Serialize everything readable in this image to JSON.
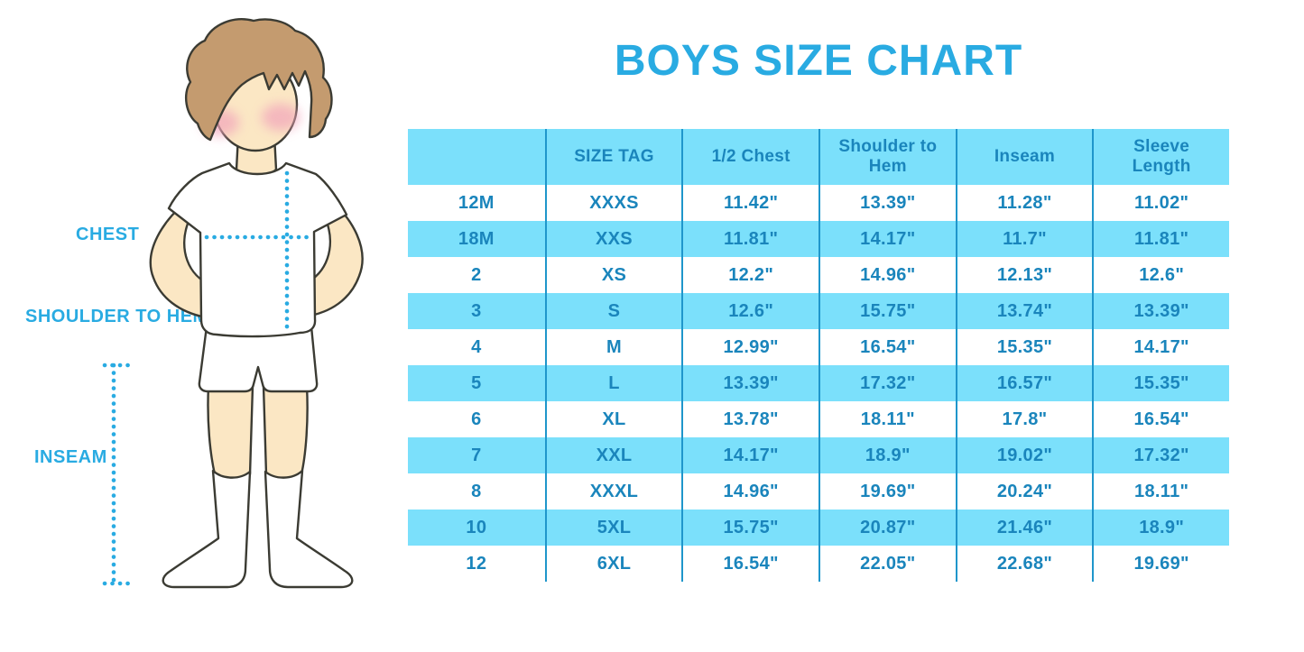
{
  "title": "BOYS SIZE CHART",
  "diagram": {
    "chest_label": "CHEST",
    "shoulder_to_hem_label": "SHOULDER TO HEM",
    "inseam_label": "INSEAM"
  },
  "chart_data": {
    "type": "table",
    "title": "BOYS SIZE CHART",
    "unit": "inches",
    "columns": [
      "",
      "SIZE TAG",
      "1/2 Chest",
      "Shoulder to Hem",
      "Inseam",
      "Sleeve Length"
    ],
    "rows": [
      [
        "12M",
        "XXXS",
        "11.42\"",
        "13.39\"",
        "11.28\"",
        "11.02\""
      ],
      [
        "18M",
        "XXS",
        "11.81\"",
        "14.17\"",
        "11.7\"",
        "11.81\""
      ],
      [
        "2",
        "XS",
        "12.2\"",
        "14.96\"",
        "12.13\"",
        "12.6\""
      ],
      [
        "3",
        "S",
        "12.6\"",
        "15.75\"",
        "13.74\"",
        "13.39\""
      ],
      [
        "4",
        "M",
        "12.99\"",
        "16.54\"",
        "15.35\"",
        "14.17\""
      ],
      [
        "5",
        "L",
        "13.39\"",
        "17.32\"",
        "16.57\"",
        "15.35\""
      ],
      [
        "6",
        "XL",
        "13.78\"",
        "18.11\"",
        "17.8\"",
        "16.54\""
      ],
      [
        "7",
        "XXL",
        "14.17\"",
        "18.9\"",
        "19.02\"",
        "17.32\""
      ],
      [
        "8",
        "XXXL",
        "14.96\"",
        "19.69\"",
        "20.24\"",
        "18.11\""
      ],
      [
        "10",
        "5XL",
        "15.75\"",
        "20.87\"",
        "21.46\"",
        "18.9\""
      ],
      [
        "12",
        "6XL",
        "16.54\"",
        "22.05\"",
        "22.68\"",
        "19.69\""
      ]
    ],
    "row_striping": "header and alternate rows light blue, others white"
  },
  "colors": {
    "accent_blue": "#29ABE2",
    "row_blue": "#7BE0FB",
    "table_text": "#1A85BC",
    "divider_blue": "#1F96CB"
  }
}
